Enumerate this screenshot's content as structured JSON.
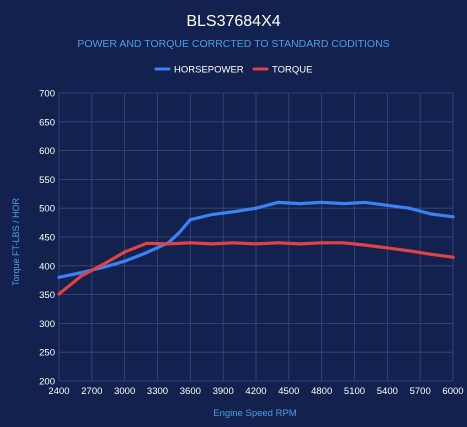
{
  "chart_data": {
    "type": "line",
    "title": "BLS37684X4",
    "subtitle": "POWER AND TORQUE CORRCTED TO STANDARD CODITIONS",
    "xlabel": "Engine Speed RPM",
    "ylabel": "Torque FT-LBS / HOR",
    "legend_position": "top",
    "grid": true,
    "xlim": [
      2400,
      6000
    ],
    "ylim": [
      200,
      700
    ],
    "x_ticks": [
      "2400",
      "2700",
      "3000",
      "3300",
      "3600",
      "3900",
      "4200",
      "4500",
      "4800",
      "5100",
      "5400",
      "5700",
      "6000"
    ],
    "y_ticks": [
      "200",
      "250",
      "300",
      "350",
      "400",
      "450",
      "500",
      "550",
      "600",
      "650",
      "700"
    ],
    "series": [
      {
        "name": "HORSEPOWER",
        "color": "#3b82f6",
        "points": [
          [
            2400,
            380
          ],
          [
            2600,
            388
          ],
          [
            2800,
            397
          ],
          [
            3000,
            408
          ],
          [
            3200,
            423
          ],
          [
            3400,
            440
          ],
          [
            3500,
            458
          ],
          [
            3600,
            480
          ],
          [
            3800,
            489
          ],
          [
            4000,
            494
          ],
          [
            4200,
            500
          ],
          [
            4400,
            510
          ],
          [
            4600,
            508
          ],
          [
            4800,
            510
          ],
          [
            5000,
            508
          ],
          [
            5200,
            510
          ],
          [
            5400,
            505
          ],
          [
            5600,
            500
          ],
          [
            5800,
            490
          ],
          [
            6000,
            485
          ]
        ]
      },
      {
        "name": "TORQUE",
        "color": "#e04343",
        "points": [
          [
            2400,
            351
          ],
          [
            2600,
            382
          ],
          [
            2800,
            402
          ],
          [
            3000,
            424
          ],
          [
            3200,
            439
          ],
          [
            3400,
            438
          ],
          [
            3600,
            440
          ],
          [
            3800,
            438
          ],
          [
            4000,
            440
          ],
          [
            4200,
            438
          ],
          [
            4400,
            440
          ],
          [
            4600,
            438
          ],
          [
            4800,
            440
          ],
          [
            5000,
            440
          ],
          [
            5200,
            436
          ],
          [
            5400,
            431
          ],
          [
            5600,
            426
          ],
          [
            5800,
            420
          ],
          [
            6000,
            415
          ]
        ]
      }
    ]
  }
}
